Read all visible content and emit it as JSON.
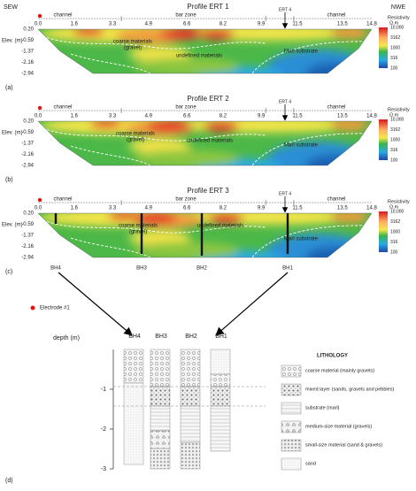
{
  "header": {
    "left": "SEW",
    "right": "NWE"
  },
  "axis": {
    "xticks": [
      "0.0",
      "1.6",
      "3.3",
      "4.9",
      "6.6",
      "8.2",
      "9.9",
      "11.5",
      "13.5",
      "14.8"
    ],
    "zones": [
      "channel",
      "bar zone",
      "channel"
    ],
    "marker": "ERT 4",
    "ylabel": "Elev. (m)",
    "yticks": [
      "0.20",
      "-0.59",
      "-1.37",
      "-2.16",
      "-2.94"
    ]
  },
  "colorbar": {
    "title": "Resistivity",
    "unit": "Ω.m",
    "ticks": [
      "10,000",
      "3162",
      "1000",
      "316",
      "100"
    ]
  },
  "profiles": [
    {
      "letter": "(a)",
      "title": "Profile ERT 1",
      "coarse": [
        "coarse materials",
        "(gravel)"
      ],
      "undefined": "undefined materials",
      "substrate": "Marl substrate"
    },
    {
      "letter": "(b)",
      "title": "Profile ERT 2",
      "coarse": [
        "coarse materials",
        "(gravel)"
      ],
      "undefined": "undefined materials",
      "substrate": "Marl substrate"
    },
    {
      "letter": "(c)",
      "title": "Profile ERT 3",
      "coarse": [
        "coarse materials",
        "(gravel)"
      ],
      "undefined": "undefined materials",
      "substrate": "Marl substrate"
    }
  ],
  "boreholes": [
    "BH4",
    "BH3",
    "BH2",
    "BH1"
  ],
  "electrode": "Electrode #1",
  "lithology": {
    "letter": "(d)",
    "ylabel": "depth (m)",
    "yticks": [
      "-1",
      "-2",
      "-3"
    ],
    "title": "LITHOLOGY",
    "items": [
      "coarse material (mainly gravels)",
      "mixed layer (sands, gravels and pebbles)",
      "substrate (marl)",
      "medium-size material (gravels)",
      "small-size material (sand & gravels)",
      "sand"
    ]
  }
}
